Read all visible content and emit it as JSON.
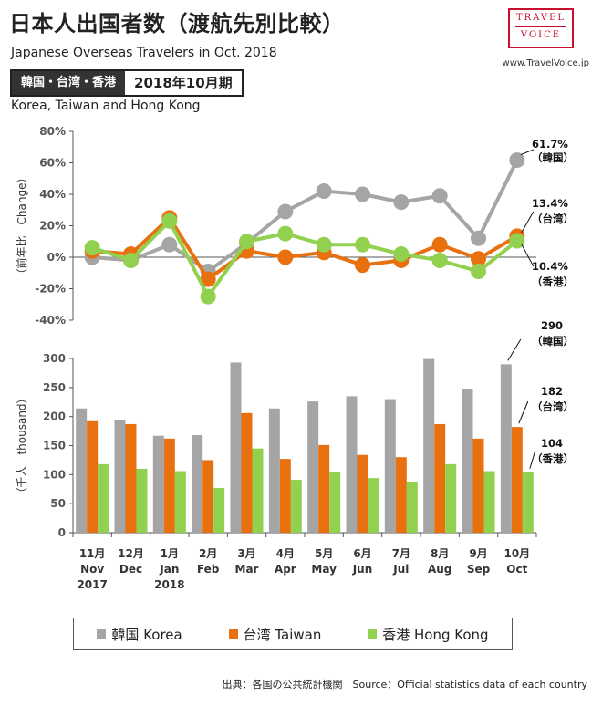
{
  "header": {
    "title": "日本人出国者数（渡航先別比較）",
    "subtitle": "Japanese Overseas Travelers in Oct. 2018",
    "website": "www.TravelVoice.jp",
    "logo_line1": "TRAVEL",
    "logo_line2": "VOICE",
    "tag_region": "韓国・台湾・香港",
    "tag_period": "2018年10月期",
    "region_en": "Korea, Taiwan and Hong Kong"
  },
  "colors": {
    "korea": "#a5a5a5",
    "taiwan": "#e8700f",
    "hongkong": "#92d050"
  },
  "chart_data": [
    {
      "type": "line",
      "ylabel": "（前年比　Change）",
      "ylim": [
        -40,
        80
      ],
      "yticks": [
        "80%",
        "60%",
        "40%",
        "20%",
        "0%",
        "-20%",
        "-40%"
      ],
      "grid": false,
      "categories": [
        "11月\nNov\n2017",
        "12月\nDec",
        "1月\nJan\n2018",
        "2月\nFeb",
        "3月\nMar",
        "4月\nApr",
        "5月\nMay",
        "6月\nJun",
        "7月\nJul",
        "8月\nAug",
        "9月\nSep",
        "10月\nOct"
      ],
      "series": [
        {
          "name": "韓国 Korea",
          "values": [
            0,
            -2,
            8,
            -9,
            9,
            29,
            42,
            40,
            35,
            39,
            12,
            61.7
          ]
        },
        {
          "name": "台湾 Taiwan",
          "values": [
            4,
            2,
            25,
            -14,
            4,
            0,
            3,
            -5,
            -2,
            8,
            -1,
            13.4
          ]
        },
        {
          "name": "香港 Hong Kong",
          "values": [
            6,
            -2,
            23,
            -25,
            10,
            15,
            8,
            8,
            2,
            -2,
            -9,
            10.4
          ]
        }
      ],
      "annotations": [
        {
          "value": "61.7%",
          "label": "（韓国）"
        },
        {
          "value": "13.4%",
          "label": "（台湾）"
        },
        {
          "value": "10.4%",
          "label": "（香港）"
        }
      ]
    },
    {
      "type": "bar",
      "ylabel": "（千人　thousand）",
      "ylim": [
        0,
        300
      ],
      "yticks": [
        "300",
        "250",
        "200",
        "150",
        "100",
        "50",
        "0"
      ],
      "grid": false,
      "categories": [
        "11月\nNov\n2017",
        "12月\nDec",
        "1月\nJan\n2018",
        "2月\nFeb",
        "3月\nMar",
        "4月\nApr",
        "5月\nMay",
        "6月\nJun",
        "7月\nJul",
        "8月\nAug",
        "9月\nSep",
        "10月\nOct"
      ],
      "series": [
        {
          "name": "韓国 Korea",
          "values": [
            214,
            194,
            167,
            168,
            293,
            214,
            226,
            235,
            230,
            299,
            248,
            290
          ]
        },
        {
          "name": "台湾 Taiwan",
          "values": [
            192,
            187,
            162,
            125,
            206,
            127,
            151,
            134,
            130,
            187,
            162,
            182
          ]
        },
        {
          "name": "香港 Hong Kong",
          "values": [
            118,
            110,
            106,
            77,
            145,
            91,
            105,
            94,
            88,
            118,
            106,
            104
          ]
        }
      ],
      "annotations": [
        {
          "value": "290",
          "label": "（韓国）"
        },
        {
          "value": "182",
          "label": "（台湾）"
        },
        {
          "value": "104",
          "label": "（香港）"
        }
      ]
    }
  ],
  "legend": {
    "korea": "韓国 Korea",
    "taiwan": "台湾 Taiwan",
    "hongkong": "香港 Hong Kong"
  },
  "footer": {
    "source": "出典：各国の公共統計機関　Source：Official statistics data of each country"
  }
}
